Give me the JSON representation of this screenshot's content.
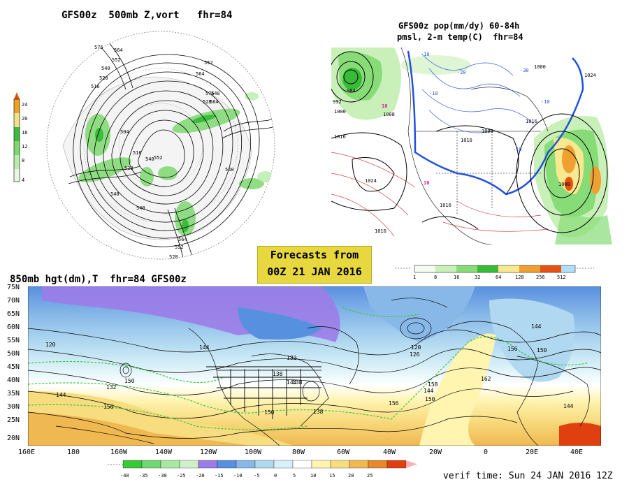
{
  "panels": {
    "top_left": {
      "title": "GFS00z  500mb Z,vort   fhr=84",
      "colorbar_ticks": [
        "24",
        "20",
        "16",
        "12",
        "8",
        "4"
      ],
      "colorbar_colors": [
        "#e8f8e0",
        "#b8eca8",
        "#7ed870",
        "#3cbc3c",
        "#f0e088",
        "#f0a020",
        "#e05010"
      ],
      "contour_labels": [
        "576",
        "564",
        "552",
        "540",
        "528",
        "516",
        "504",
        "516",
        "528",
        "540",
        "552",
        "564",
        "576",
        "564",
        "540",
        "528",
        "552",
        "540",
        "540",
        "564",
        "552",
        "540",
        "528"
      ]
    },
    "top_right": {
      "title_line1": "GFS00z pop(mm/dy) 60-84h",
      "title_line2": "pmsl, 2-m temp(C)  fhr=84",
      "isobar_labels": [
        "984",
        "992",
        "1000",
        "1008",
        "1016",
        "1024",
        "1016",
        "1008",
        "1016",
        "1000",
        "1008",
        "1016",
        "1016",
        "1024"
      ],
      "temp_labels": [
        "-10",
        "-20",
        "-30",
        "-10",
        "10",
        "-10",
        "10",
        "-10"
      ],
      "colorbar_ticks": [
        "1",
        "8",
        "16",
        "32",
        "64",
        "128",
        "256",
        "512"
      ],
      "colorbar_colors": [
        "#f4fcf0",
        "#c8f0b8",
        "#88dc78",
        "#38bc38",
        "#f8e890",
        "#f0a030",
        "#e85010",
        "#b0e0f8"
      ]
    },
    "bottom": {
      "title": "850mb hgt(dm),T  fhr=84 GFS00z",
      "lat_labels": [
        "75N",
        "70N",
        "65N",
        "60N",
        "55N",
        "50N",
        "45N",
        "40N",
        "35N",
        "30N",
        "25N",
        "20N"
      ],
      "lon_labels": [
        "160E",
        "180",
        "160W",
        "140W",
        "120W",
        "100W",
        "80W",
        "60W",
        "40W",
        "20W",
        "0",
        "20E",
        "40E"
      ],
      "height_labels": [
        "120",
        "144",
        "132",
        "156",
        "150",
        "144",
        "132",
        "138",
        "150",
        "138",
        "138",
        "144",
        "156",
        "120",
        "126",
        "158",
        "144",
        "150",
        "162",
        "156",
        "144",
        "150",
        "144"
      ],
      "colorbar_ticks": [
        "-40",
        "-35",
        "-30",
        "-25",
        "-20",
        "-15",
        "-10",
        "-5",
        "0",
        "5",
        "10",
        "15",
        "20",
        "25"
      ],
      "colorbar_colors": [
        "#38c838",
        "#70d870",
        "#a8e8a0",
        "#d0f0c8",
        "#9c7ce8",
        "#5890e0",
        "#88b8e8",
        "#b0d8f0",
        "#d8f0f8",
        "#ffffff",
        "#fff4b0",
        "#f8dc80",
        "#f0b850",
        "#e88828",
        "#e04010",
        "#f8b0b0"
      ],
      "verif_time": "verif time: Sun 24 JAN 2016 12Z"
    }
  },
  "forecast_box": {
    "line1": "Forecasts from",
    "line2": "00Z 21 JAN 2016"
  }
}
